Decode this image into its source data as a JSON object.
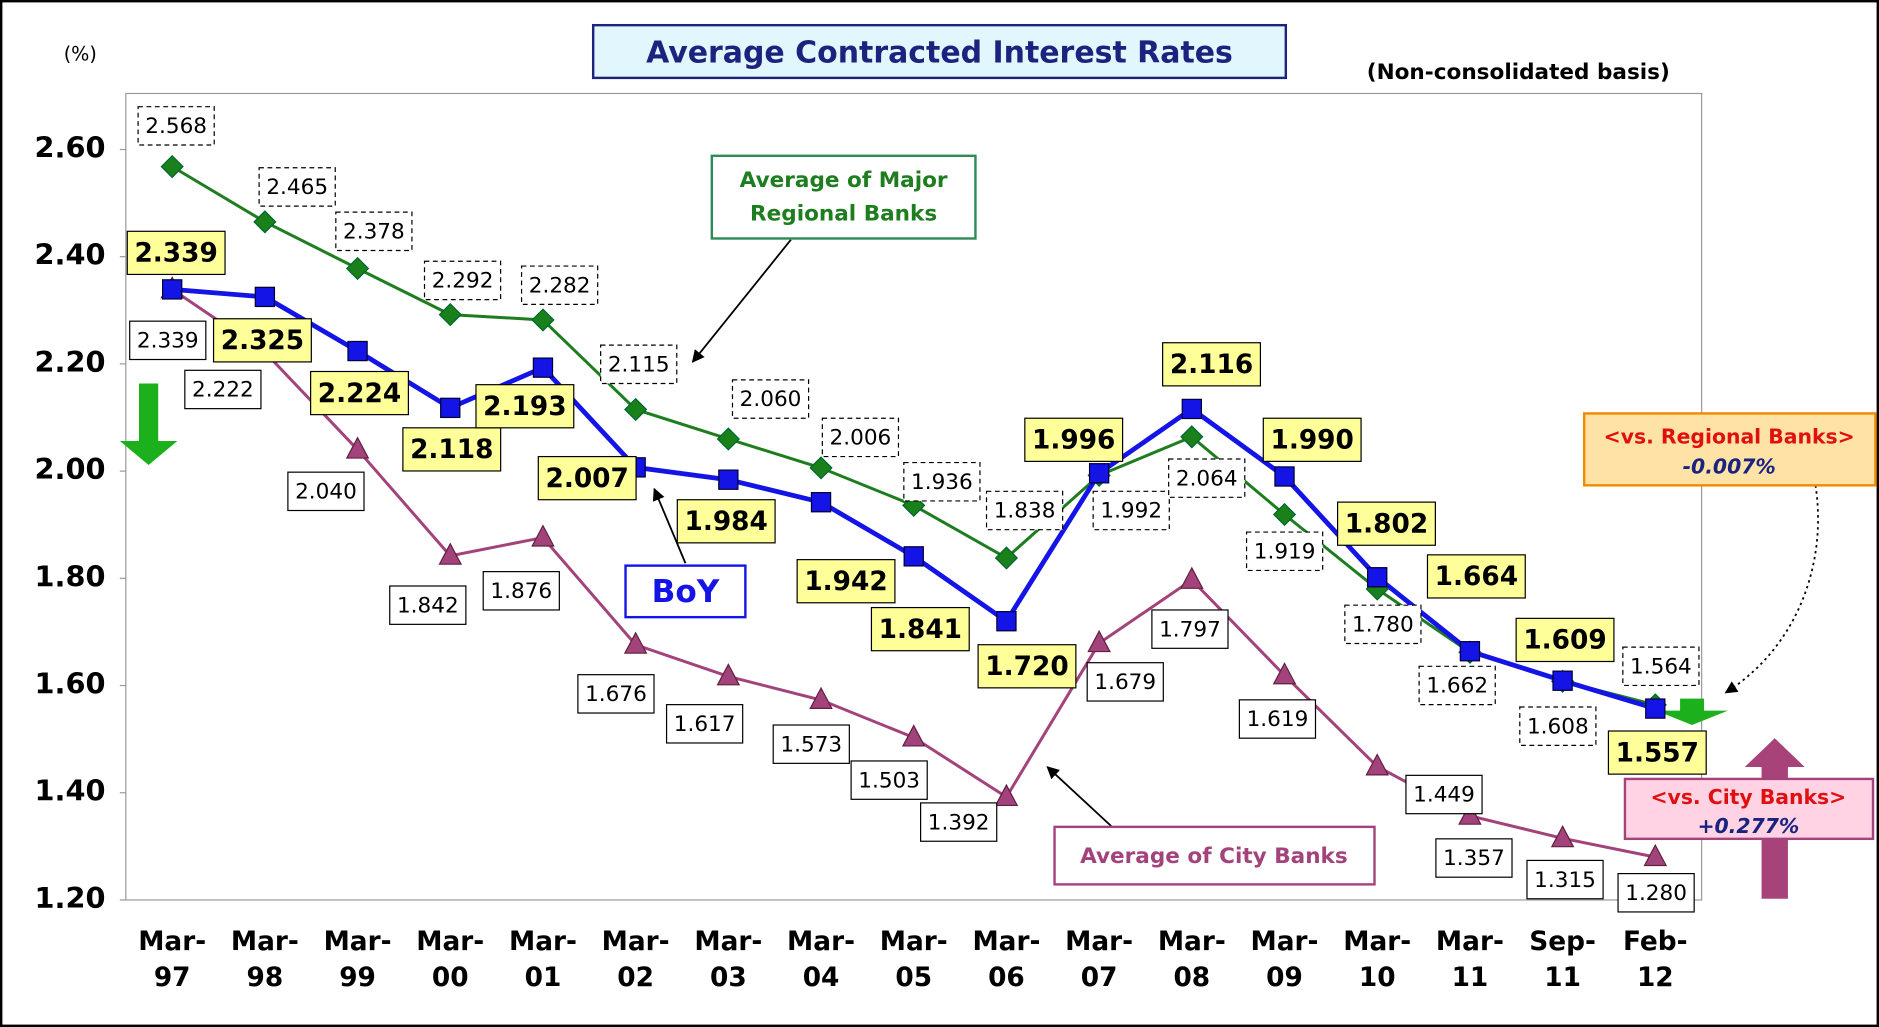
{
  "chart_data": {
    "type": "line",
    "title": "Average Contracted Interest Rates",
    "subtitle": "(Non-consolidated basis)",
    "y_label": "(%)",
    "categories": [
      "Mar-97",
      "Mar-98",
      "Mar-99",
      "Mar-00",
      "Mar-01",
      "Mar-02",
      "Mar-03",
      "Mar-04",
      "Mar-05",
      "Mar-06",
      "Mar-07",
      "Mar-08",
      "Mar-09",
      "Mar-10",
      "Mar-11",
      "Sep-11",
      "Feb-12"
    ],
    "series": [
      {
        "name": "Average of Major Regional Banks",
        "color": "#1e7d1e",
        "marker": "diamond",
        "values": [
          2.568,
          2.465,
          2.378,
          2.292,
          2.282,
          2.115,
          2.06,
          2.006,
          1.936,
          1.838,
          1.992,
          2.064,
          1.919,
          1.78,
          1.662,
          1.608,
          1.564
        ],
        "value_labels": [
          "2.568",
          "2.465",
          "2.378",
          "2.292",
          "2.282",
          "2.115",
          "2.060",
          "2.006",
          "1.936",
          "1.838",
          "1.992",
          "2.064",
          "1.919",
          "1.780",
          "1.662",
          "1.608",
          "1.564"
        ]
      },
      {
        "name": "Average of City Banks",
        "color": "#a3437b",
        "marker": "triangle",
        "values": [
          2.339,
          2.222,
          2.04,
          1.842,
          1.876,
          1.676,
          1.617,
          1.573,
          1.503,
          1.392,
          1.679,
          1.797,
          1.619,
          1.449,
          1.357,
          1.315,
          1.28
        ],
        "value_labels": [
          "2.339",
          "2.222",
          "2.040",
          "1.842",
          "1.876",
          "1.676",
          "1.617",
          "1.573",
          "1.503",
          "1.392",
          "1.679",
          "1.797",
          "1.619",
          "1.449",
          "1.357",
          "1.315",
          "1.280"
        ]
      },
      {
        "name": "BoY",
        "color": "#1414e6",
        "marker": "square",
        "values": [
          2.339,
          2.325,
          2.224,
          2.118,
          2.193,
          2.007,
          1.984,
          1.942,
          1.841,
          1.72,
          1.996,
          2.116,
          1.99,
          1.802,
          1.664,
          1.609,
          1.557
        ],
        "value_labels": [
          "2.339",
          "2.325",
          "2.224",
          "2.118",
          "2.193",
          "2.007",
          "1.984",
          "1.942",
          "1.841",
          "1.720",
          "1.996",
          "2.116",
          "1.990",
          "1.802",
          "1.664",
          "1.609",
          "1.557"
        ]
      }
    ],
    "ylim": [
      1.2,
      2.7
    ],
    "yticks": [
      {
        "value": 1.2,
        "label": "1.20"
      },
      {
        "value": 1.4,
        "label": "1.40"
      },
      {
        "value": 1.6,
        "label": "1.60"
      },
      {
        "value": 1.8,
        "label": "1.80"
      },
      {
        "value": 2.0,
        "label": "2.00"
      },
      {
        "value": 2.2,
        "label": "2.20"
      },
      {
        "value": 2.4,
        "label": "2.40"
      },
      {
        "value": 2.6,
        "label": "2.60"
      }
    ],
    "annotations": [
      {
        "title": "<vs. Regional Banks>",
        "text": "-0.007%"
      },
      {
        "title": "<vs. City Banks>",
        "text": "+0.277%"
      }
    ]
  }
}
